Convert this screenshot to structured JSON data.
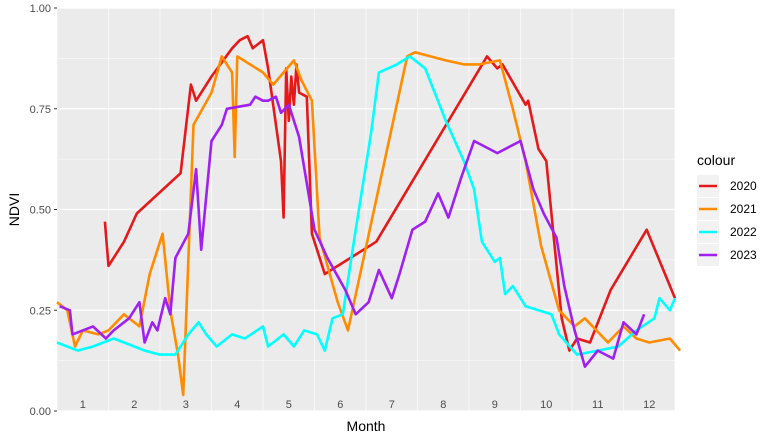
{
  "chart_data": {
    "type": "line",
    "xlabel": "Month",
    "ylabel": "NDVI",
    "xlim": [
      0.5,
      12.5
    ],
    "ylim": [
      0,
      1
    ],
    "x_ticks": [
      1,
      2,
      3,
      4,
      5,
      6,
      7,
      8,
      9,
      10,
      11,
      12
    ],
    "x_tick_labels": [
      "1",
      "2",
      "3",
      "4",
      "5",
      "6",
      "7",
      "8",
      "9",
      "10",
      "11",
      "12"
    ],
    "y_ticks": [
      0,
      0.25,
      0.5,
      0.75,
      1
    ],
    "y_tick_labels": [
      "0.00",
      "0.25",
      "0.50",
      "0.75",
      "1.00"
    ],
    "grid": true,
    "legend": {
      "title": "colour",
      "position": "right"
    },
    "series": [
      {
        "name": "2020",
        "color": "#e41a1a",
        "points": [
          [
            1.43,
            0.47
          ],
          [
            1.5,
            0.36
          ],
          [
            1.8,
            0.42
          ],
          [
            2.05,
            0.49
          ],
          [
            2.9,
            0.59
          ],
          [
            3.1,
            0.81
          ],
          [
            3.2,
            0.77
          ],
          [
            3.5,
            0.83
          ],
          [
            3.9,
            0.9
          ],
          [
            4.05,
            0.92
          ],
          [
            4.2,
            0.93
          ],
          [
            4.3,
            0.9
          ],
          [
            4.5,
            0.92
          ],
          [
            4.6,
            0.85
          ],
          [
            4.85,
            0.62
          ],
          [
            4.9,
            0.48
          ],
          [
            4.95,
            0.85
          ],
          [
            5.0,
            0.72
          ],
          [
            5.05,
            0.83
          ],
          [
            5.1,
            0.76
          ],
          [
            5.15,
            0.86
          ],
          [
            5.2,
            0.79
          ],
          [
            5.35,
            0.78
          ],
          [
            5.45,
            0.44
          ],
          [
            5.7,
            0.34
          ],
          [
            6.7,
            0.42
          ],
          [
            8.85,
            0.88
          ],
          [
            9.05,
            0.85
          ],
          [
            9.15,
            0.86
          ],
          [
            9.6,
            0.76
          ],
          [
            9.65,
            0.77
          ],
          [
            9.85,
            0.65
          ],
          [
            10.0,
            0.62
          ],
          [
            10.3,
            0.23
          ],
          [
            10.45,
            0.15
          ],
          [
            10.6,
            0.18
          ],
          [
            10.85,
            0.17
          ],
          [
            11.25,
            0.3
          ],
          [
            11.95,
            0.45
          ],
          [
            12.5,
            0.28
          ]
        ]
      },
      {
        "name": "2021",
        "color": "#ff8c00",
        "points": [
          [
            0.5,
            0.27
          ],
          [
            0.7,
            0.25
          ],
          [
            0.85,
            0.16
          ],
          [
            1.0,
            0.2
          ],
          [
            1.3,
            0.19
          ],
          [
            1.5,
            0.2
          ],
          [
            1.8,
            0.24
          ],
          [
            2.1,
            0.21
          ],
          [
            2.3,
            0.34
          ],
          [
            2.55,
            0.44
          ],
          [
            2.7,
            0.25
          ],
          [
            2.85,
            0.14
          ],
          [
            2.95,
            0.04
          ],
          [
            3.15,
            0.71
          ],
          [
            3.5,
            0.79
          ],
          [
            3.7,
            0.88
          ],
          [
            3.9,
            0.84
          ],
          [
            3.95,
            0.63
          ],
          [
            4.0,
            0.88
          ],
          [
            4.5,
            0.84
          ],
          [
            4.7,
            0.81
          ],
          [
            5.1,
            0.87
          ],
          [
            5.25,
            0.82
          ],
          [
            5.45,
            0.77
          ],
          [
            5.6,
            0.43
          ],
          [
            5.95,
            0.27
          ],
          [
            6.15,
            0.2
          ],
          [
            7.3,
            0.88
          ],
          [
            7.45,
            0.89
          ],
          [
            8.05,
            0.87
          ],
          [
            8.4,
            0.86
          ],
          [
            8.7,
            0.86
          ],
          [
            9.1,
            0.87
          ],
          [
            9.35,
            0.75
          ],
          [
            9.6,
            0.62
          ],
          [
            9.9,
            0.41
          ],
          [
            10.25,
            0.25
          ],
          [
            10.55,
            0.21
          ],
          [
            10.75,
            0.23
          ],
          [
            11.2,
            0.17
          ],
          [
            11.5,
            0.21
          ],
          [
            11.75,
            0.18
          ],
          [
            12.0,
            0.17
          ],
          [
            12.4,
            0.18
          ],
          [
            12.6,
            0.15
          ]
        ]
      },
      {
        "name": "2022",
        "color": "#00ffff",
        "points": [
          [
            0.5,
            0.17
          ],
          [
            0.9,
            0.15
          ],
          [
            1.2,
            0.16
          ],
          [
            1.6,
            0.18
          ],
          [
            2.0,
            0.16
          ],
          [
            2.2,
            0.15
          ],
          [
            2.5,
            0.14
          ],
          [
            2.8,
            0.14
          ],
          [
            3.05,
            0.19
          ],
          [
            3.25,
            0.22
          ],
          [
            3.4,
            0.19
          ],
          [
            3.6,
            0.16
          ],
          [
            3.9,
            0.19
          ],
          [
            4.15,
            0.18
          ],
          [
            4.5,
            0.21
          ],
          [
            4.6,
            0.16
          ],
          [
            4.9,
            0.19
          ],
          [
            5.1,
            0.16
          ],
          [
            5.3,
            0.2
          ],
          [
            5.55,
            0.19
          ],
          [
            5.7,
            0.15
          ],
          [
            5.85,
            0.23
          ],
          [
            6.05,
            0.24
          ],
          [
            6.3,
            0.45
          ],
          [
            6.6,
            0.69
          ],
          [
            6.75,
            0.84
          ],
          [
            7.1,
            0.86
          ],
          [
            7.35,
            0.88
          ],
          [
            7.65,
            0.85
          ],
          [
            8.05,
            0.72
          ],
          [
            8.4,
            0.62
          ],
          [
            8.6,
            0.55
          ],
          [
            8.75,
            0.42
          ],
          [
            9.0,
            0.37
          ],
          [
            9.1,
            0.38
          ],
          [
            9.2,
            0.29
          ],
          [
            9.35,
            0.31
          ],
          [
            9.6,
            0.26
          ],
          [
            9.85,
            0.25
          ],
          [
            10.1,
            0.24
          ],
          [
            10.25,
            0.19
          ],
          [
            10.6,
            0.14
          ],
          [
            11.0,
            0.15
          ],
          [
            11.4,
            0.16
          ],
          [
            11.75,
            0.2
          ],
          [
            12.1,
            0.23
          ],
          [
            12.2,
            0.28
          ],
          [
            12.4,
            0.25
          ],
          [
            12.5,
            0.28
          ]
        ]
      },
      {
        "name": "2023",
        "color": "#a020f0",
        "points": [
          [
            0.55,
            0.26
          ],
          [
            0.75,
            0.25
          ],
          [
            0.8,
            0.19
          ],
          [
            1.0,
            0.2
          ],
          [
            1.2,
            0.21
          ],
          [
            1.45,
            0.18
          ],
          [
            1.6,
            0.2
          ],
          [
            1.9,
            0.23
          ],
          [
            2.1,
            0.27
          ],
          [
            2.2,
            0.17
          ],
          [
            2.35,
            0.22
          ],
          [
            2.45,
            0.2
          ],
          [
            2.6,
            0.28
          ],
          [
            2.7,
            0.24
          ],
          [
            2.8,
            0.38
          ],
          [
            3.05,
            0.44
          ],
          [
            3.2,
            0.6
          ],
          [
            3.3,
            0.4
          ],
          [
            3.5,
            0.67
          ],
          [
            3.7,
            0.71
          ],
          [
            3.8,
            0.75
          ],
          [
            4.25,
            0.76
          ],
          [
            4.35,
            0.78
          ],
          [
            4.5,
            0.77
          ],
          [
            4.6,
            0.77
          ],
          [
            4.75,
            0.78
          ],
          [
            4.85,
            0.74
          ],
          [
            5.0,
            0.76
          ],
          [
            5.2,
            0.68
          ],
          [
            5.5,
            0.45
          ],
          [
            5.75,
            0.38
          ],
          [
            6.1,
            0.3
          ],
          [
            6.3,
            0.24
          ],
          [
            6.55,
            0.27
          ],
          [
            6.75,
            0.35
          ],
          [
            7.0,
            0.28
          ],
          [
            7.15,
            0.34
          ],
          [
            7.4,
            0.45
          ],
          [
            7.65,
            0.47
          ],
          [
            7.9,
            0.54
          ],
          [
            8.1,
            0.48
          ],
          [
            8.35,
            0.58
          ],
          [
            8.6,
            0.67
          ],
          [
            9.05,
            0.64
          ],
          [
            9.5,
            0.67
          ],
          [
            9.75,
            0.55
          ],
          [
            9.95,
            0.49
          ],
          [
            10.2,
            0.43
          ],
          [
            10.35,
            0.31
          ],
          [
            10.55,
            0.2
          ],
          [
            10.75,
            0.11
          ],
          [
            11.0,
            0.15
          ],
          [
            11.3,
            0.13
          ],
          [
            11.5,
            0.22
          ],
          [
            11.75,
            0.19
          ],
          [
            11.9,
            0.24
          ]
        ]
      }
    ]
  }
}
